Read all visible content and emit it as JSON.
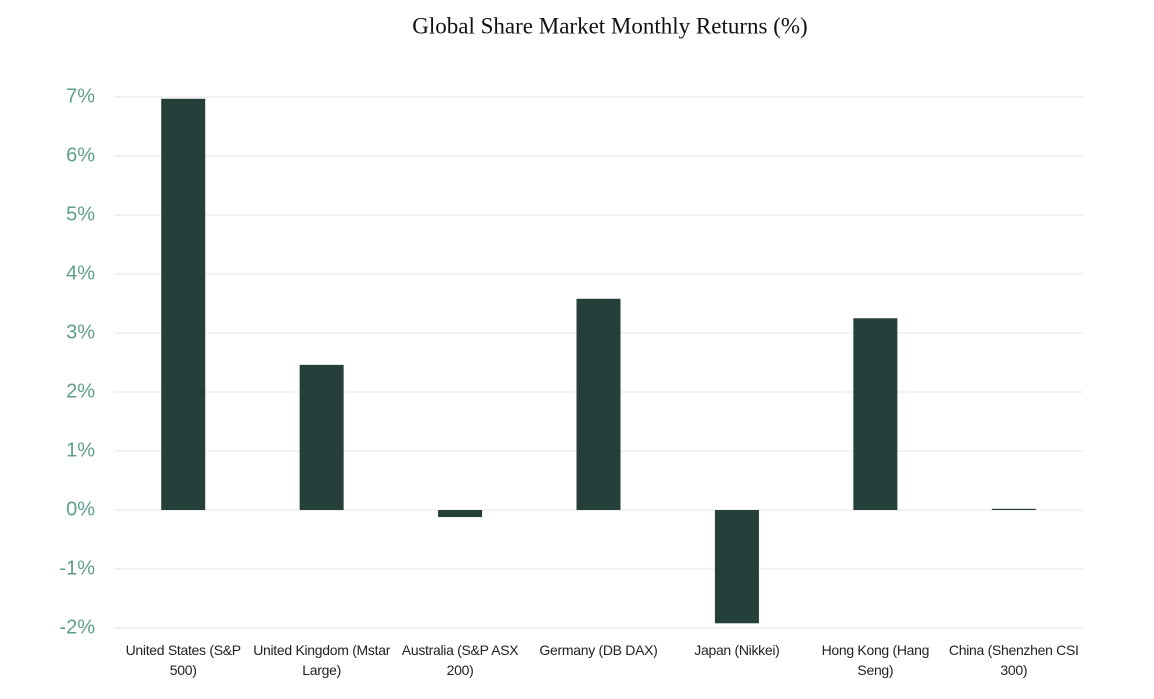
{
  "chart_data": {
    "type": "bar",
    "title": "Global Share Market Monthly Returns (%)",
    "categories": [
      "United States (S&P 500)",
      "United Kingdom (Mstar Large)",
      "Australia (S&P ASX 200)",
      "Germany (DB DAX)",
      "Japan (Nikkei)",
      "Hong Kong (Hang Seng)",
      "China (Shenzhen CSI 300)"
    ],
    "values": [
      6.97,
      2.46,
      -0.12,
      3.58,
      -1.92,
      3.25,
      0.02
    ],
    "color": "#253f3a",
    "ylim": [
      -2,
      7
    ],
    "yticks": [
      {
        "value": -2,
        "label": "-2%"
      },
      {
        "value": -1,
        "label": "-1%"
      },
      {
        "value": 0,
        "label": "0%"
      },
      {
        "value": 1,
        "label": "1%"
      },
      {
        "value": 2,
        "label": "2%"
      },
      {
        "value": 3,
        "label": "3%"
      },
      {
        "value": 4,
        "label": "4%"
      },
      {
        "value": 5,
        "label": "5%"
      },
      {
        "value": 6,
        "label": "6%"
      },
      {
        "value": 7,
        "label": "7%"
      }
    ],
    "grid": true
  }
}
